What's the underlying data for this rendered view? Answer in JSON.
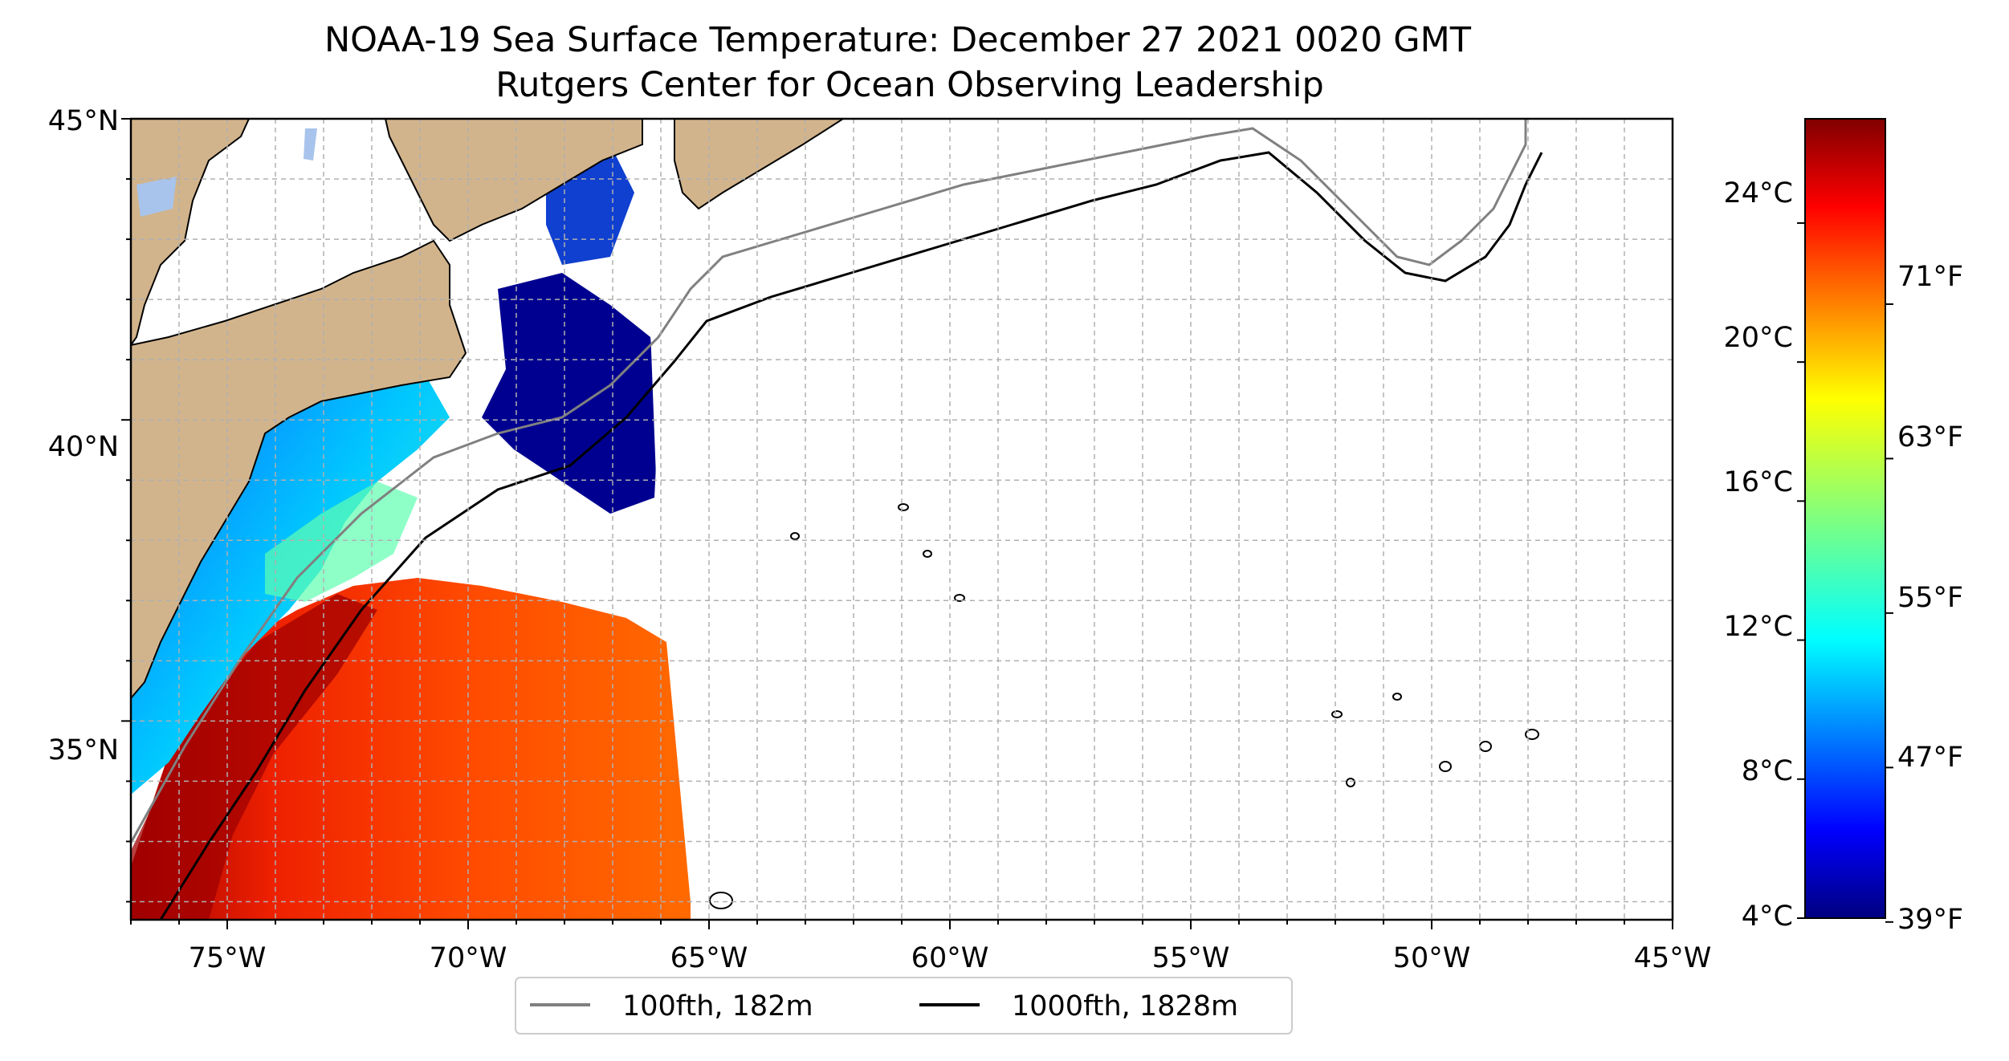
{
  "figure": {
    "title_line1": "NOAA-19 Sea Surface Temperature: December 27 2021 0020 GMT",
    "title_line2": "Rutgers Center for Ocean Observing Leadership"
  },
  "map": {
    "lon_range": [
      -77,
      -45
    ],
    "lat_range": [
      31.7,
      45
    ],
    "lon_tick_labels": [
      "75°W",
      "70°W",
      "65°W",
      "60°W",
      "55°W",
      "50°W",
      "45°W"
    ],
    "lat_tick_labels": [
      "45°N",
      "40°N",
      "35°N"
    ],
    "grid": true,
    "land_color": "#d2b48c",
    "lake_color": "#a8c4ec",
    "no_data_color": "#ffffff"
  },
  "legend": {
    "placement": "bottom-center",
    "items": [
      {
        "label": "100fth, 182m",
        "color": "#808080"
      },
      {
        "label": "1000fth, 1828m",
        "color": "#000000"
      }
    ]
  },
  "colorbar": {
    "colormap": "jet",
    "range_celsius": [
      4,
      27
    ],
    "celsius_labels": [
      "24°C",
      "20°C",
      "16°C",
      "12°C",
      "8°C",
      "4°C"
    ],
    "fahrenheit_labels": [
      "71°F",
      "63°F",
      "55°F",
      "47°F",
      "39°F"
    ]
  },
  "chart_data": {
    "type": "heatmap",
    "title": "NOAA-19 Sea Surface Temperature: December 27 2021 0020 GMT",
    "subtitle": "Rutgers Center for Ocean Observing Leadership",
    "x_ticks": [
      "75°W",
      "70°W",
      "65°W",
      "60°W",
      "55°W",
      "50°W",
      "45°W"
    ],
    "y_ticks": [
      "45°N",
      "40°N",
      "35°N"
    ],
    "series": [
      {
        "name": "100fth, 182m"
      },
      {
        "name": "1000fth, 1828m"
      }
    ],
    "colorbar_celsius": [
      24,
      20,
      16,
      12,
      8,
      4
    ],
    "colorbar_fahrenheit": [
      71,
      63,
      55,
      47,
      39
    ],
    "legend": "bottom-center"
  }
}
